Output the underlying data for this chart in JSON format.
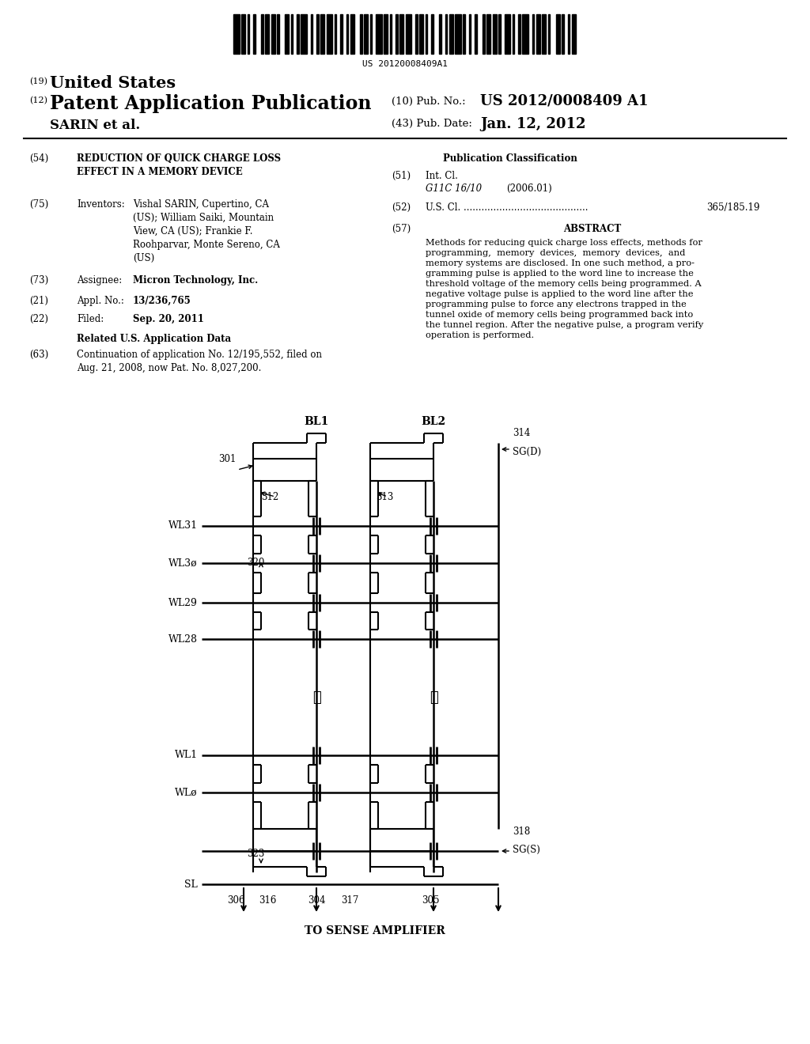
{
  "bg_color": "#ffffff",
  "barcode_text": "US 20120008409A1",
  "header_19_text": "United States",
  "header_12_text": "Patent Application Publication",
  "header_10_label": "(10) Pub. No.:",
  "header_10_val": "US 2012/0008409 A1",
  "header_43_label": "(43) Pub. Date:",
  "header_43_val": "Jan. 12, 2012",
  "header_name": "SARIN et al.",
  "field54_label": "(54)",
  "field54_text": "REDUCTION OF QUICK CHARGE LOSS\nEFFECT IN A MEMORY DEVICE",
  "field75_label": "(75)",
  "field75_title": "Inventors:",
  "field75_text": "Vishal SARIN, Cupertino, CA\n(US); William Saiki, Mountain\nView, CA (US); Frankie F.\nRoohparvar, Monte Sereno, CA\n(US)",
  "field73_label": "(73)",
  "field73_title": "Assignee:",
  "field73_text": "Micron Technology, Inc.",
  "field21_label": "(21)",
  "field21_title": "Appl. No.:",
  "field21_text": "13/236,765",
  "field22_label": "(22)",
  "field22_title": "Filed:",
  "field22_text": "Sep. 20, 2011",
  "related_title": "Related U.S. Application Data",
  "field63_label": "(63)",
  "field63_text": "Continuation of application No. 12/195,552, filed on\nAug. 21, 2008, now Pat. No. 8,027,200.",
  "pub_class_title": "Publication Classification",
  "field51_label": "(51)",
  "field51_title": "Int. Cl.",
  "field51_class": "G11C 16/10",
  "field51_year": "(2006.01)",
  "field52_label": "(52)",
  "field52_title": "U.S. Cl.",
  "field52_val": "365/185.19",
  "field57_label": "(57)",
  "field57_title": "ABSTRACT",
  "abstract_text": "Methods for reducing quick charge loss effects, methods for\nprogramming,  memory  devices,  memory  devices,  and\nmemory systems are disclosed. In one such method, a pro-\ngramming pulse is applied to the word line to increase the\nthreshold voltage of the memory cells being programmed. A\nnegative voltage pulse is applied to the word line after the\nprogramming pulse to force any electrons trapped in the\ntunnel oxide of memory cells being programmed back into\nthe tunnel region. After the negative pulse, a program verify\noperation is performed.",
  "wl_labels": [
    "WL31",
    "WL3ø",
    "WL29",
    "WL28",
    "WL1",
    "WLø"
  ],
  "num301": "301",
  "num312": "312",
  "num313": "313",
  "num314": "314",
  "num318": "318",
  "num320": "320",
  "num323": "323",
  "num304": "304",
  "num305": "305",
  "num306": "306",
  "num316": "316",
  "num317": "317",
  "label_BL1": "BL1",
  "label_BL2": "BL2",
  "label_SGD": "SG(D)",
  "label_SGS": "SG(S)",
  "label_SL": "SL",
  "label_TO_SA": "TO SENSE AMPLIFIER"
}
